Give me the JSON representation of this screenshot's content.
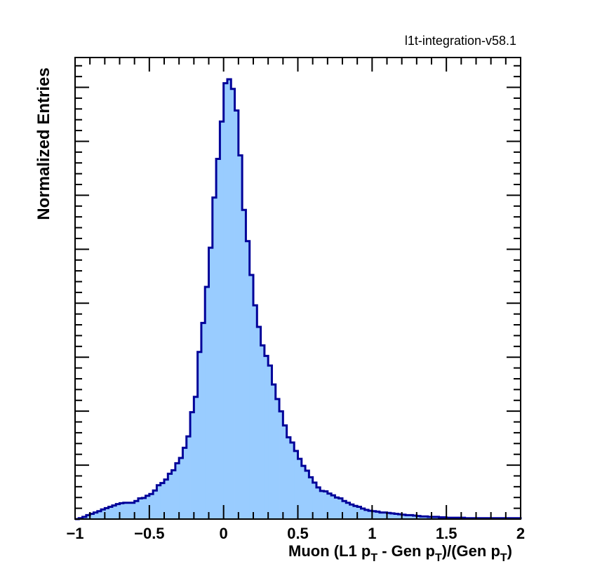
{
  "version_tag": "l1t-integration-v58.1",
  "chart_data": {
    "type": "histogram",
    "ylabel": "Normalized Entries",
    "xlabel_parts": {
      "prefix": "Muon (L1 p",
      "sub1": "T",
      "middle": " - Gen p",
      "sub2": "T",
      "middle2": ")/(Gen p",
      "sub3": "T",
      "suffix": ")"
    },
    "xlim": [
      -1,
      2
    ],
    "ylim": [
      0,
      1
    ],
    "x_ticks": [
      "−1",
      "−0.5",
      "0",
      "0.5",
      "1",
      "1.5",
      "2"
    ],
    "x_tick_values": [
      -1,
      -0.5,
      0,
      0.5,
      1,
      1.5,
      2
    ],
    "y_tick_labels_shown": false,
    "bin_width": 0.025,
    "fill_color": "#99ccff",
    "line_color": "#000099",
    "values": [
      0.0,
      0.002,
      0.005,
      0.009,
      0.012,
      0.015,
      0.018,
      0.022,
      0.025,
      0.028,
      0.031,
      0.034,
      0.036,
      0.037,
      0.037,
      0.037,
      0.041,
      0.047,
      0.048,
      0.053,
      0.057,
      0.065,
      0.077,
      0.082,
      0.09,
      0.103,
      0.111,
      0.127,
      0.139,
      0.162,
      0.188,
      0.243,
      0.278,
      0.38,
      0.446,
      0.528,
      0.617,
      0.731,
      0.819,
      0.904,
      0.991,
      1.0,
      0.978,
      0.929,
      0.827,
      0.703,
      0.632,
      0.555,
      0.486,
      0.437,
      0.395,
      0.371,
      0.349,
      0.306,
      0.273,
      0.245,
      0.213,
      0.186,
      0.174,
      0.155,
      0.137,
      0.121,
      0.11,
      0.095,
      0.083,
      0.072,
      0.064,
      0.063,
      0.058,
      0.054,
      0.049,
      0.047,
      0.041,
      0.037,
      0.033,
      0.03,
      0.028,
      0.024,
      0.021,
      0.019,
      0.018,
      0.017,
      0.015,
      0.015,
      0.014,
      0.013,
      0.012,
      0.011,
      0.01,
      0.009,
      0.009,
      0.008,
      0.007,
      0.006,
      0.006,
      0.005,
      0.005,
      0.005,
      0.004,
      0.004,
      0.003,
      0.003,
      0.003,
      0.003,
      0.003,
      0.002,
      0.002,
      0.002,
      0.002,
      0.002,
      0.002,
      0.002,
      0.002,
      0.002,
      0.002,
      0.002,
      0.002,
      0.002,
      0.002,
      0.002
    ]
  }
}
